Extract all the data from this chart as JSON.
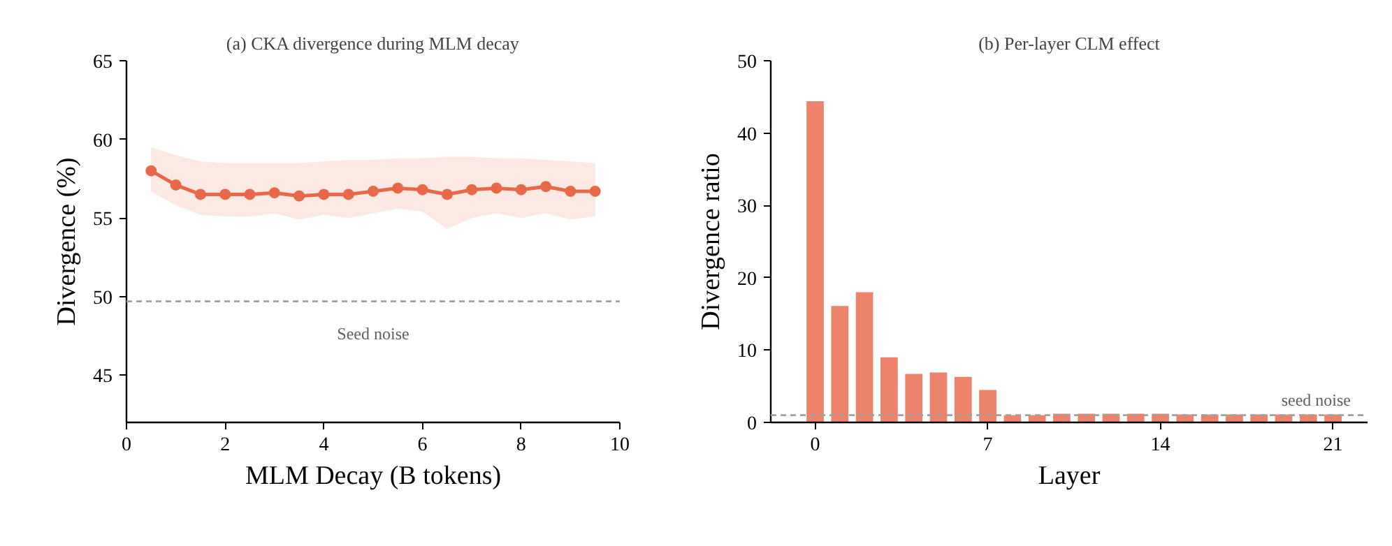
{
  "chart_data": [
    {
      "type": "line",
      "title": "(a) CKA divergence during MLM decay",
      "xlabel": "MLM Decay (B tokens)",
      "ylabel": "Divergence (%)",
      "x": [
        0.5,
        1,
        1.5,
        2,
        2.5,
        3,
        3.5,
        4,
        4.5,
        5,
        5.5,
        6,
        6.5,
        7,
        7.5,
        8,
        8.5,
        9,
        9.5
      ],
      "series": [
        {
          "color": "#e8694a",
          "values": [
            58.0,
            57.1,
            56.5,
            56.5,
            56.5,
            56.6,
            56.4,
            56.5,
            56.5,
            56.7,
            56.9,
            56.8,
            56.5,
            56.8,
            56.9,
            56.8,
            57.0,
            56.7,
            56.7
          ],
          "lower": [
            56.7,
            55.8,
            55.2,
            55.1,
            55.1,
            55.3,
            54.9,
            55.2,
            55.0,
            55.3,
            55.6,
            55.4,
            54.3,
            55.0,
            55.3,
            55.0,
            55.3,
            54.9,
            55.1
          ],
          "upper": [
            59.5,
            59.0,
            58.6,
            58.5,
            58.5,
            58.5,
            58.5,
            58.6,
            58.7,
            58.7,
            58.8,
            58.8,
            58.9,
            58.9,
            58.8,
            58.8,
            58.7,
            58.6,
            58.5
          ]
        }
      ],
      "marker": "circle",
      "xlim": [
        0,
        10
      ],
      "ylim": [
        42,
        65
      ],
      "xticks": [
        0,
        2,
        4,
        6,
        8,
        10
      ],
      "yticks": [
        45,
        50,
        55,
        60,
        65
      ],
      "grid": false,
      "ref_lines": [
        {
          "axis": "y",
          "value": 49.7,
          "label": "Seed noise",
          "color": "#a0a0a0",
          "line_style": "dashed"
        }
      ]
    },
    {
      "type": "bar",
      "title": "(b) Per-layer CLM effect",
      "xlabel": "Layer",
      "ylabel": "Divergence ratio",
      "x": [
        0,
        1,
        2,
        3,
        4,
        5,
        6,
        7,
        8,
        9,
        10,
        11,
        12,
        13,
        14,
        15,
        16,
        17,
        18,
        19,
        20,
        21
      ],
      "series": [
        {
          "color": "#ec836a",
          "values": [
            44.4,
            16.1,
            18.0,
            9.0,
            6.7,
            6.9,
            6.3,
            4.5,
            1.0,
            1.0,
            1.2,
            1.2,
            1.2,
            1.2,
            1.2,
            1.1,
            1.1,
            1.1,
            1.1,
            1.1,
            1.1,
            1.1
          ]
        }
      ],
      "xlim": [
        -1.8,
        22.4
      ],
      "ylim": [
        0,
        50
      ],
      "xticks": [
        0,
        7,
        14,
        21
      ],
      "yticks": [
        0,
        10,
        20,
        30,
        40,
        50
      ],
      "grid": false,
      "ref_lines": [
        {
          "axis": "y",
          "value": 1.0,
          "label": "seed noise",
          "color": "#a0a0a0",
          "line_style": "dashed"
        }
      ]
    }
  ]
}
